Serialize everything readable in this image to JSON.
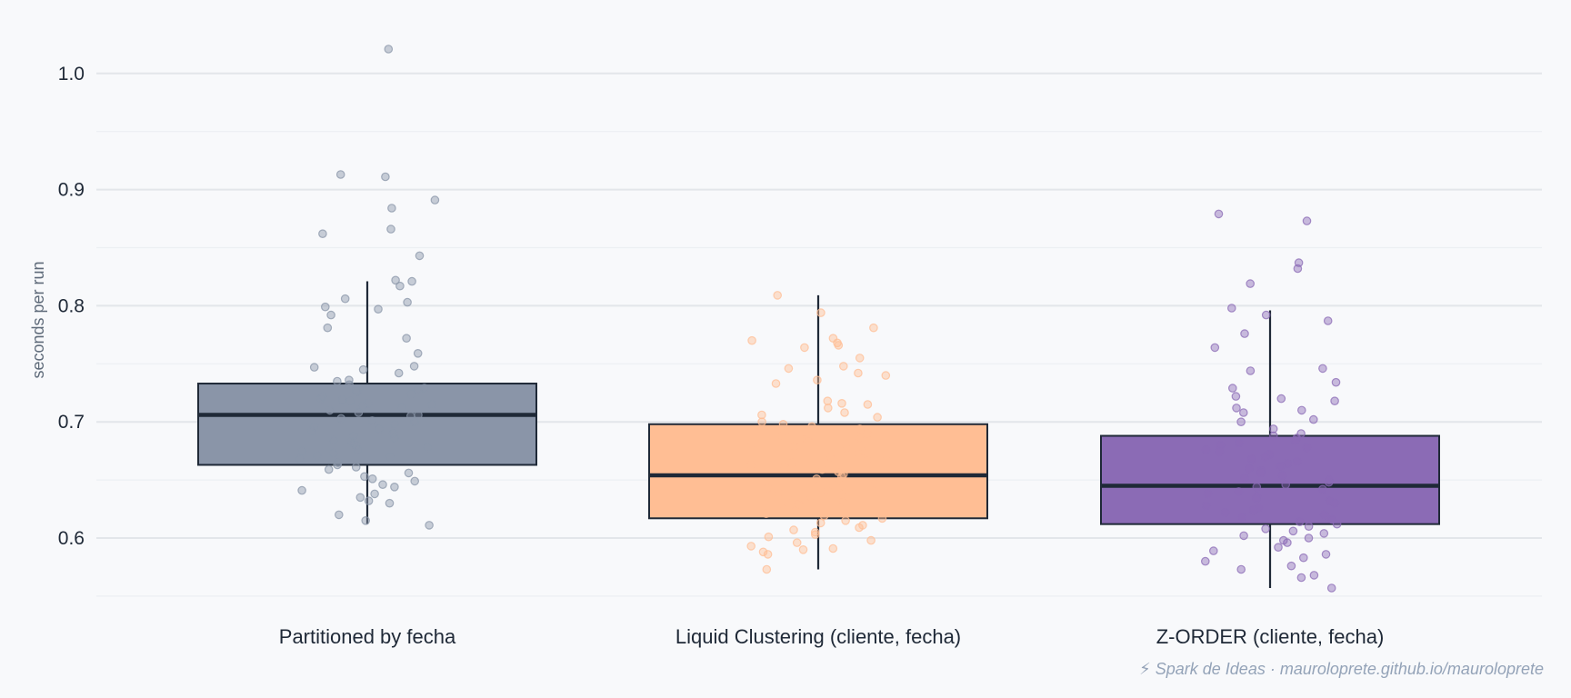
{
  "chart_data": {
    "type": "box",
    "ylabel": "seconds per run",
    "ylim": [
      0.55,
      1.03
    ],
    "yticks": [
      "0.6",
      "0.7",
      "0.8",
      "0.9",
      "1.0"
    ],
    "grid": true,
    "footer": "⚡ Spark de Ideas · mauroloprete.github.io/mauroloprete",
    "series": [
      {
        "name": "Partitioned by fecha",
        "color": "#8a95a8",
        "q1": 0.663,
        "median": 0.706,
        "q3": 0.733,
        "whisker_low": 0.612,
        "whisker_high": 0.821,
        "points": [
          1.021,
          0.913,
          0.911,
          0.891,
          0.884,
          0.866,
          0.862,
          0.843,
          0.822,
          0.821,
          0.817,
          0.806,
          0.803,
          0.799,
          0.797,
          0.792,
          0.781,
          0.772,
          0.759,
          0.748,
          0.747,
          0.745,
          0.742,
          0.736,
          0.735,
          0.732,
          0.729,
          0.728,
          0.727,
          0.726,
          0.724,
          0.722,
          0.72,
          0.719,
          0.718,
          0.716,
          0.715,
          0.714,
          0.712,
          0.71,
          0.708,
          0.706,
          0.705,
          0.703,
          0.701,
          0.7,
          0.698,
          0.696,
          0.694,
          0.692,
          0.69,
          0.688,
          0.686,
          0.684,
          0.683,
          0.681,
          0.68,
          0.678,
          0.676,
          0.675,
          0.673,
          0.671,
          0.67,
          0.668,
          0.665,
          0.663,
          0.661,
          0.659,
          0.656,
          0.653,
          0.651,
          0.649,
          0.646,
          0.644,
          0.641,
          0.638,
          0.635,
          0.632,
          0.63,
          0.62,
          0.615,
          0.611
        ]
      },
      {
        "name": "Liquid Clustering (cliente, fecha)",
        "color": "#ffbe94",
        "q1": 0.617,
        "median": 0.654,
        "q3": 0.698,
        "whisker_low": 0.573,
        "whisker_high": 0.809,
        "points": [
          0.809,
          0.794,
          0.781,
          0.772,
          0.77,
          0.768,
          0.766,
          0.764,
          0.755,
          0.748,
          0.746,
          0.742,
          0.74,
          0.736,
          0.733,
          0.718,
          0.716,
          0.715,
          0.712,
          0.708,
          0.706,
          0.704,
          0.7,
          0.698,
          0.696,
          0.694,
          0.692,
          0.69,
          0.688,
          0.686,
          0.685,
          0.683,
          0.681,
          0.679,
          0.677,
          0.675,
          0.673,
          0.671,
          0.669,
          0.667,
          0.665,
          0.663,
          0.661,
          0.659,
          0.657,
          0.655,
          0.653,
          0.651,
          0.649,
          0.647,
          0.645,
          0.643,
          0.641,
          0.639,
          0.637,
          0.635,
          0.633,
          0.631,
          0.629,
          0.627,
          0.625,
          0.623,
          0.621,
          0.619,
          0.617,
          0.615,
          0.613,
          0.611,
          0.609,
          0.607,
          0.605,
          0.603,
          0.601,
          0.598,
          0.596,
          0.593,
          0.591,
          0.59,
          0.588,
          0.586,
          0.573
        ]
      },
      {
        "name": "Z-ORDER (cliente, fecha)",
        "color": "#8b6bb5",
        "q1": 0.612,
        "median": 0.645,
        "q3": 0.688,
        "whisker_low": 0.557,
        "whisker_high": 0.796,
        "points": [
          0.879,
          0.873,
          0.837,
          0.832,
          0.819,
          0.798,
          0.792,
          0.787,
          0.776,
          0.764,
          0.746,
          0.744,
          0.734,
          0.729,
          0.722,
          0.72,
          0.718,
          0.712,
          0.71,
          0.708,
          0.702,
          0.7,
          0.694,
          0.69,
          0.688,
          0.686,
          0.684,
          0.682,
          0.68,
          0.678,
          0.676,
          0.674,
          0.672,
          0.67,
          0.668,
          0.666,
          0.664,
          0.662,
          0.66,
          0.658,
          0.656,
          0.654,
          0.652,
          0.65,
          0.648,
          0.646,
          0.644,
          0.642,
          0.64,
          0.638,
          0.636,
          0.634,
          0.632,
          0.63,
          0.628,
          0.626,
          0.624,
          0.622,
          0.62,
          0.618,
          0.616,
          0.614,
          0.612,
          0.61,
          0.608,
          0.606,
          0.604,
          0.602,
          0.6,
          0.598,
          0.596,
          0.592,
          0.589,
          0.586,
          0.583,
          0.58,
          0.576,
          0.573,
          0.568,
          0.566,
          0.557
        ]
      }
    ]
  }
}
